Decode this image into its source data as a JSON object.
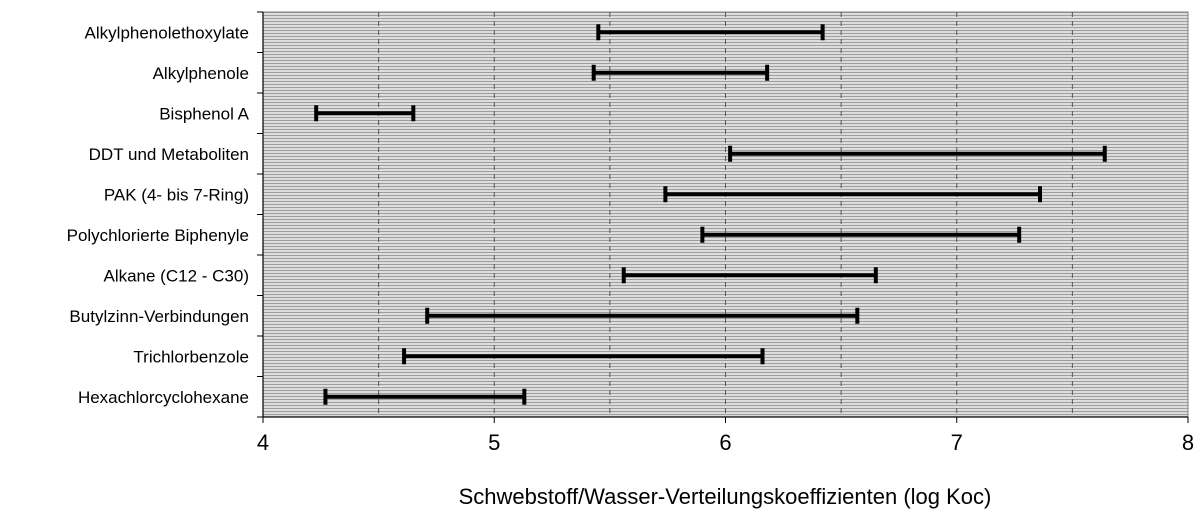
{
  "chart_data": {
    "type": "range",
    "title": "",
    "xlabel": "Schwebstoff/Wasser-Verteilungskoeffizienten (log Koc)",
    "ylabel": "",
    "xlim": [
      4,
      8
    ],
    "xticks": [
      "4",
      "5",
      "6",
      "7",
      "8"
    ],
    "xtick_values": [
      4,
      5,
      6,
      7,
      8
    ],
    "grid": "dashed vertical at 0.5",
    "categories": [
      "Alkylphenolethoxylate",
      "Alkylphenole",
      "Bisphenol A",
      "DDT und Metaboliten",
      "PAK (4- bis 7-Ring)",
      "Polychlorierte Biphenyle",
      "Alkane (C12 - C30)",
      "Butylzinn-Verbindungen",
      "Trichlorbenzole",
      "Hexachlorcyclohexane"
    ],
    "ranges": [
      [
        5.45,
        6.42
      ],
      [
        5.43,
        6.18
      ],
      [
        4.23,
        4.65
      ],
      [
        6.02,
        7.64
      ],
      [
        5.74,
        7.36
      ],
      [
        5.9,
        7.27
      ],
      [
        5.56,
        6.65
      ],
      [
        4.71,
        6.57
      ],
      [
        4.61,
        6.16
      ],
      [
        4.27,
        5.13
      ]
    ],
    "colors": {
      "plot_bg": "#dddddd",
      "hatch": "#9e9e9e",
      "bar": "#000000"
    }
  }
}
